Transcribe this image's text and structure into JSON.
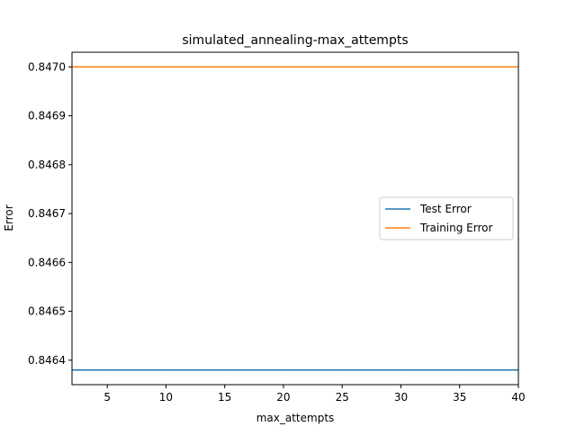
{
  "chart_data": {
    "type": "line",
    "title": "simulated_annealing-max_attempts",
    "xlabel": "max_attempts",
    "ylabel": "Error",
    "xlim": [
      2,
      40
    ],
    "ylim": [
      0.84635,
      0.84703
    ],
    "x_ticks": [
      5,
      10,
      15,
      20,
      25,
      30,
      35,
      40
    ],
    "x_tick_labels": [
      "5",
      "10",
      "15",
      "20",
      "25",
      "30",
      "35",
      "40"
    ],
    "y_ticks": [
      0.8464,
      0.8465,
      0.8466,
      0.8467,
      0.8468,
      0.8469,
      0.847
    ],
    "y_tick_labels": [
      "0.8464",
      "0.8465",
      "0.8466",
      "0.8467",
      "0.8468",
      "0.8469",
      "0.8470"
    ],
    "grid": false,
    "legend_position": "center-right",
    "series": [
      {
        "name": "Test Error",
        "color": "#1f77b4",
        "x": [
          2,
          40
        ],
        "y": [
          0.84638,
          0.84638
        ]
      },
      {
        "name": "Training Error",
        "color": "#ff7f0e",
        "x": [
          2,
          40
        ],
        "y": [
          0.847,
          0.847
        ]
      }
    ]
  }
}
